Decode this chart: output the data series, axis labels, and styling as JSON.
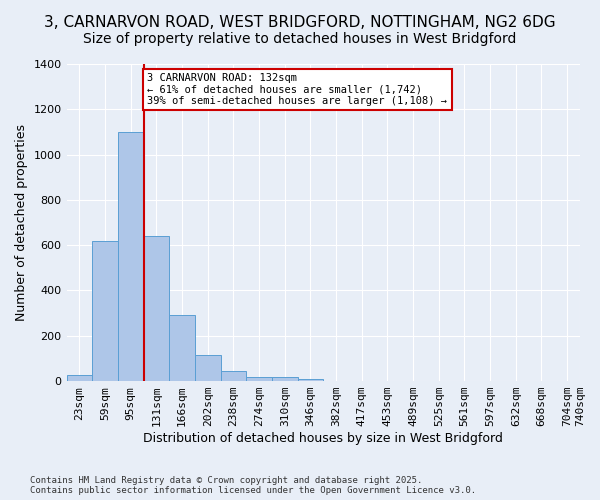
{
  "title_line1": "3, CARNARVON ROAD, WEST BRIDGFORD, NOTTINGHAM, NG2 6DG",
  "title_line2": "Size of property relative to detached houses in West Bridgford",
  "xlabel": "Distribution of detached houses by size in West Bridgford",
  "ylabel": "Number of detached properties",
  "bar_values": [
    25,
    620,
    1100,
    640,
    290,
    115,
    45,
    20,
    20,
    10,
    0,
    0,
    0,
    0,
    0,
    0,
    0,
    0,
    0,
    0
  ],
  "bin_labels": [
    "23sqm",
    "59sqm",
    "95sqm",
    "131sqm",
    "166sqm",
    "202sqm",
    "238sqm",
    "274sqm",
    "310sqm",
    "346sqm",
    "382sqm",
    "417sqm",
    "453sqm",
    "489sqm",
    "525sqm",
    "561sqm",
    "597sqm",
    "632sqm",
    "668sqm",
    "704sqm"
  ],
  "bar_color": "#aec6e8",
  "bar_edge_color": "#5a9fd4",
  "background_color": "#e8eef7",
  "grid_color": "#ffffff",
  "red_line_x": 2.5,
  "red_line_color": "#cc0000",
  "annotation_text": "3 CARNARVON ROAD: 132sqm\n← 61% of detached houses are smaller (1,742)\n39% of semi-detached houses are larger (1,108) →",
  "annotation_box_color": "#ffffff",
  "annotation_box_edge_color": "#cc0000",
  "ylim": [
    0,
    1400
  ],
  "yticks": [
    0,
    200,
    400,
    600,
    800,
    1000,
    1200,
    1400
  ],
  "extra_tick_label": "740sqm",
  "footnote": "Contains HM Land Registry data © Crown copyright and database right 2025.\nContains public sector information licensed under the Open Government Licence v3.0.",
  "title_fontsize": 11,
  "subtitle_fontsize": 10,
  "axis_fontsize": 9,
  "tick_fontsize": 8
}
